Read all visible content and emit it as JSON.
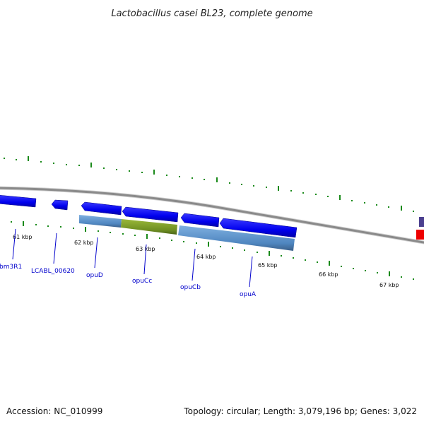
{
  "title": "Lactobacillus casei BL23, complete genome",
  "footer": {
    "accession": "Accession: NC_010999",
    "summary": "Topology: circular; Length: 3,079,196 bp; Genes: 3,022"
  },
  "scale_labels": [
    "61 kbp",
    "62 kbp",
    "63 kbp",
    "64 kbp",
    "65 kbp",
    "66 kbp",
    "67 kbp"
  ],
  "gene_labels": [
    "bm3R1",
    "LCABL_00620",
    "opuD",
    "opuCc",
    "opuCb",
    "opuA"
  ],
  "colors": {
    "backbone": "#8a8a8a",
    "gene_arrow": "#0000ee",
    "feature_bar": "#5b8fc7",
    "feature_highlight": "#7a9a2a",
    "tick": "#1a8a1a",
    "label": "#0000cc",
    "edge_purple": "#4b3f8f",
    "edge_red": "#ee0000"
  }
}
